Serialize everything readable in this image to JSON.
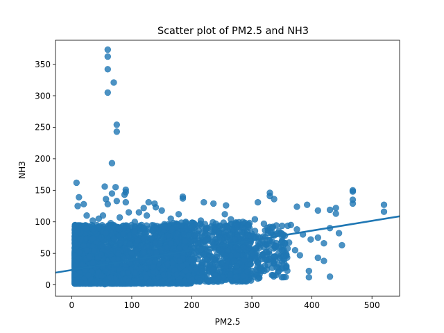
{
  "chart_data": {
    "type": "scatter",
    "title": "Scatter plot of PM2.5 and NH3",
    "xlabel": "PM2.5",
    "ylabel": "NH3",
    "xlim": [
      -27,
      546
    ],
    "ylim": [
      -18,
      388
    ],
    "xticks": [
      0,
      100,
      200,
      300,
      400,
      500
    ],
    "yticks": [
      0,
      50,
      100,
      150,
      200,
      250,
      300,
      350
    ],
    "grid": false,
    "legend": "none",
    "colors": {
      "points": "#1f77b4",
      "regression_line": "#1f77b4"
    },
    "regression_line": {
      "intercept": 23.6,
      "slope": 0.156
    },
    "series": [
      {
        "points": [
          [
            60,
            373
          ],
          [
            60,
            362
          ],
          [
            60,
            342
          ],
          [
            70,
            321
          ],
          [
            60,
            305
          ],
          [
            75,
            254
          ],
          [
            75,
            243
          ],
          [
            67,
            193
          ],
          [
            8,
            162
          ],
          [
            55,
            156
          ],
          [
            73,
            155
          ],
          [
            90,
            151
          ],
          [
            90,
            147
          ],
          [
            67,
            145
          ],
          [
            88,
            143
          ],
          [
            12,
            139
          ],
          [
            57,
            136
          ],
          [
            75,
            133
          ],
          [
            90,
            131
          ],
          [
            128,
            131
          ],
          [
            138,
            129
          ],
          [
            10,
            125
          ],
          [
            20,
            128
          ],
          [
            60,
            128
          ],
          [
            120,
            122
          ],
          [
            140,
            123
          ],
          [
            185,
            140
          ],
          [
            185,
            137
          ],
          [
            220,
            131
          ],
          [
            236,
            129
          ],
          [
            257,
            126
          ],
          [
            310,
            131
          ],
          [
            330,
            146
          ],
          [
            330,
            141
          ],
          [
            337,
            136
          ],
          [
            375,
            124
          ],
          [
            392,
            127
          ],
          [
            410,
            118
          ],
          [
            430,
            119
          ],
          [
            468,
            150
          ],
          [
            468,
            148
          ],
          [
            468,
            135
          ],
          [
            468,
            129
          ],
          [
            520,
            127
          ],
          [
            520,
            116
          ],
          [
            440,
            122
          ],
          [
            440,
            113
          ],
          [
            25,
            110
          ],
          [
            35,
            102
          ],
          [
            45,
            105
          ],
          [
            52,
            110
          ],
          [
            65,
            98
          ],
          [
            80,
            107
          ],
          [
            95,
            115
          ],
          [
            105,
            100
          ],
          [
            112,
            115
          ],
          [
            125,
            110
          ],
          [
            150,
            118
          ],
          [
            165,
            105
          ],
          [
            178,
            112
          ],
          [
            190,
            100
          ],
          [
            205,
            95
          ],
          [
            215,
            102
          ],
          [
            225,
            90
          ],
          [
            240,
            97
          ],
          [
            255,
            112
          ],
          [
            265,
            104
          ],
          [
            275,
            95
          ],
          [
            285,
            100
          ],
          [
            295,
            95
          ],
          [
            305,
            104
          ],
          [
            320,
            97
          ],
          [
            335,
            92
          ],
          [
            345,
            85
          ],
          [
            355,
            78
          ],
          [
            365,
            95
          ],
          [
            375,
            88
          ],
          [
            385,
            80
          ],
          [
            398,
            72
          ],
          [
            410,
            75
          ],
          [
            420,
            66
          ],
          [
            430,
            90
          ],
          [
            445,
            82
          ],
          [
            450,
            63
          ],
          [
            362,
            67
          ],
          [
            372,
            55
          ],
          [
            380,
            47
          ],
          [
            395,
            22
          ],
          [
            395,
            12
          ],
          [
            410,
            43
          ],
          [
            420,
            38
          ],
          [
            430,
            13
          ],
          [
            325,
            48
          ],
          [
            335,
            38
          ],
          [
            345,
            22
          ],
          [
            350,
            12
          ],
          [
            300,
            18
          ],
          [
            310,
            10
          ],
          [
            10,
            85
          ],
          [
            15,
            72
          ],
          [
            20,
            62
          ],
          [
            25,
            55
          ],
          [
            30,
            45
          ],
          [
            35,
            35
          ],
          [
            40,
            28
          ],
          [
            45,
            20
          ],
          [
            50,
            14
          ],
          [
            12,
            42
          ],
          [
            18,
            32
          ],
          [
            22,
            24
          ],
          [
            28,
            15
          ],
          [
            32,
            8
          ],
          [
            38,
            5
          ],
          [
            42,
            3
          ],
          [
            48,
            2
          ],
          [
            55,
            1
          ],
          [
            60,
            60
          ],
          [
            65,
            48
          ],
          [
            70,
            40
          ],
          [
            75,
            33
          ],
          [
            80,
            25
          ],
          [
            85,
            18
          ],
          [
            90,
            10
          ],
          [
            95,
            6
          ],
          [
            100,
            3
          ],
          [
            105,
            85
          ],
          [
            110,
            70
          ],
          [
            115,
            62
          ],
          [
            120,
            52
          ],
          [
            125,
            44
          ],
          [
            130,
            36
          ],
          [
            135,
            28
          ],
          [
            140,
            20
          ],
          [
            145,
            12
          ],
          [
            150,
            6
          ],
          [
            155,
            92
          ],
          [
            160,
            78
          ],
          [
            165,
            66
          ],
          [
            170,
            58
          ],
          [
            175,
            47
          ],
          [
            180,
            38
          ],
          [
            185,
            30
          ],
          [
            190,
            22
          ],
          [
            195,
            14
          ],
          [
            200,
            8
          ],
          [
            205,
            78
          ],
          [
            210,
            66
          ],
          [
            215,
            56
          ],
          [
            220,
            48
          ],
          [
            225,
            40
          ],
          [
            230,
            32
          ],
          [
            235,
            24
          ],
          [
            240,
            16
          ],
          [
            245,
            10
          ],
          [
            250,
            72
          ],
          [
            255,
            62
          ],
          [
            260,
            54
          ],
          [
            265,
            46
          ],
          [
            270,
            38
          ],
          [
            275,
            30
          ],
          [
            280,
            22
          ],
          [
            285,
            14
          ],
          [
            290,
            68
          ],
          [
            295,
            58
          ],
          [
            300,
            50
          ],
          [
            305,
            42
          ],
          [
            310,
            35
          ],
          [
            315,
            28
          ],
          [
            320,
            60
          ],
          [
            325,
            52
          ],
          [
            330,
            70
          ],
          [
            340,
            62
          ],
          [
            350,
            55
          ]
        ]
      }
    ],
    "dense_bands": [
      {
        "x_from": 5,
        "x_to": 200,
        "y_from": 2,
        "y_to": 95,
        "count": 2800,
        "x_bias": 1.8,
        "y_bias": 1.6
      },
      {
        "x_from": 150,
        "x_to": 300,
        "y_from": 5,
        "y_to": 100,
        "count": 700,
        "x_bias": 1.0,
        "y_bias": 1.3
      },
      {
        "x_from": 250,
        "x_to": 360,
        "y_from": 10,
        "y_to": 95,
        "count": 240,
        "x_bias": 1.0,
        "y_bias": 1.0
      }
    ]
  }
}
